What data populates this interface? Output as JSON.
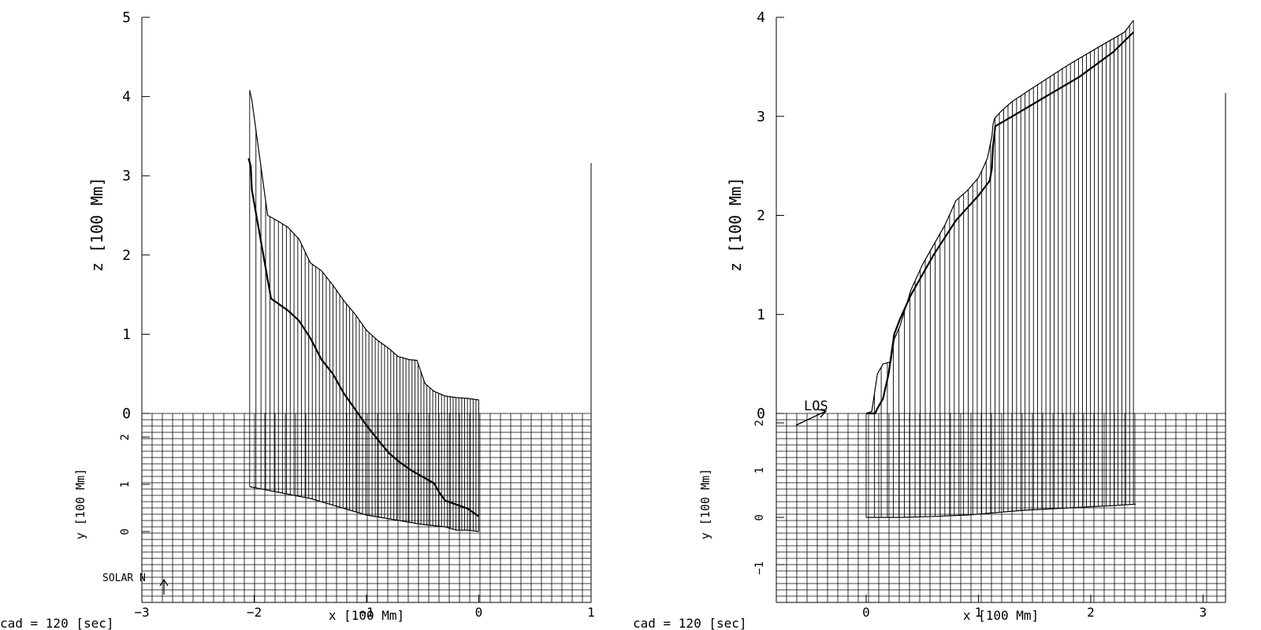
{
  "colors": {
    "ink": "#000000",
    "background": "#ffffff"
  },
  "chart_data": [
    {
      "type": "line",
      "panel": "left",
      "xlabel": "x [100 Mm]",
      "zlabel": "z [100 Mm]",
      "ylabel": "y [100 Mm]",
      "caption": "cad =  120 [sec]",
      "annotation": "SOLAR N",
      "x_ticks": [
        "−3",
        "−2",
        "−1",
        "0",
        "1"
      ],
      "z_ticks": [
        "0",
        "1",
        "2",
        "3",
        "4",
        "5"
      ],
      "y_ticks": [
        "0",
        "1",
        "2"
      ],
      "xlim": [
        -3,
        1
      ],
      "zlim": [
        0,
        5
      ],
      "ylim": [
        -1.5,
        2.5
      ],
      "grid": true,
      "top_profile": {
        "x": [
          -2.04,
          -2.02,
          -1.88,
          -1.78,
          -1.7,
          -1.6,
          -1.5,
          -1.4,
          -1.3,
          -1.2,
          -1.1,
          -1.0,
          -0.9,
          -0.8,
          -0.72,
          -0.62,
          -0.55,
          -0.48,
          -0.4,
          -0.3,
          -0.2,
          -0.1,
          0.0
        ],
        "z": [
          4.08,
          3.95,
          2.5,
          2.42,
          2.35,
          2.2,
          1.9,
          1.8,
          1.62,
          1.42,
          1.25,
          1.05,
          0.92,
          0.82,
          0.72,
          0.68,
          0.67,
          0.38,
          0.28,
          0.22,
          0.2,
          0.19,
          0.17
        ]
      },
      "middle_profile": {
        "x": [
          -2.05,
          -2.03,
          -2.02,
          -1.85,
          -1.7,
          -1.6,
          -1.5,
          -1.4,
          -1.3,
          -1.2,
          -1.1,
          -1.0,
          -0.9,
          -0.8,
          -0.7,
          -0.6,
          -0.5,
          -0.4,
          -0.35,
          -0.3,
          -0.2,
          -0.1,
          0.0
        ],
        "z": [
          3.22,
          3.12,
          2.82,
          1.45,
          1.3,
          1.17,
          0.95,
          0.68,
          0.5,
          0.25,
          0.05,
          -0.15,
          -0.33,
          -0.5,
          -0.62,
          -0.72,
          -0.8,
          -0.88,
          -1.0,
          -1.1,
          -1.15,
          -1.2,
          -1.3
        ]
      },
      "footprint": {
        "x": [
          -2.04,
          -1.5,
          -1.0,
          -0.5,
          -0.3,
          -0.2,
          -0.1,
          0.0
        ],
        "y": [
          0.95,
          0.7,
          0.35,
          0.15,
          0.1,
          0.03,
          0.03,
          0.0
        ]
      }
    },
    {
      "type": "line",
      "panel": "right",
      "xlabel": "x [100 Mm]",
      "zlabel": "z [100 Mm]",
      "ylabel": "y [100 Mm]",
      "caption": "cad =  120 [sec]",
      "annotation": "LOS",
      "x_ticks": [
        "0",
        "1",
        "2",
        "3"
      ],
      "z_ticks": [
        "0",
        "1",
        "2",
        "3",
        "4"
      ],
      "y_ticks": [
        "−1",
        "0",
        "1",
        "2"
      ],
      "xlim": [
        -0.8,
        3.2
      ],
      "zlim": [
        0,
        4
      ],
      "ylim": [
        -1.8,
        2.2
      ],
      "grid": true,
      "top_profile": {
        "x": [
          0.0,
          0.05,
          0.1,
          0.15,
          0.22,
          0.25,
          0.3,
          0.4,
          0.5,
          0.6,
          0.7,
          0.8,
          0.9,
          1.0,
          1.05,
          1.08,
          1.12,
          1.13,
          1.14,
          1.16,
          1.2,
          1.3,
          1.5,
          1.8,
          2.1,
          2.3,
          2.38
        ],
        "z": [
          0.0,
          0.02,
          0.4,
          0.5,
          0.52,
          0.75,
          0.88,
          1.25,
          1.5,
          1.7,
          1.9,
          2.15,
          2.25,
          2.38,
          2.5,
          2.58,
          2.8,
          2.92,
          2.97,
          3.0,
          3.05,
          3.15,
          3.3,
          3.52,
          3.72,
          3.85,
          3.97
        ]
      },
      "middle_profile": {
        "x": [
          0.0,
          0.08,
          0.1,
          0.15,
          0.2,
          0.25,
          0.3,
          0.4,
          0.6,
          0.8,
          1.0,
          1.1,
          1.12,
          1.13,
          1.15,
          1.3,
          1.6,
          1.9,
          2.2,
          2.38
        ],
        "z": [
          0.0,
          0.0,
          0.05,
          0.15,
          0.4,
          0.8,
          0.95,
          1.2,
          1.6,
          1.95,
          2.2,
          2.35,
          2.48,
          2.7,
          2.9,
          3.0,
          3.2,
          3.4,
          3.65,
          3.85
        ]
      },
      "footprint": {
        "x": [
          0.0,
          0.1,
          0.3,
          0.6,
          0.9,
          1.15,
          1.4,
          1.8,
          2.2,
          2.4
        ],
        "y": [
          0.0,
          0.0,
          0.0,
          0.02,
          0.05,
          0.1,
          0.15,
          0.2,
          0.25,
          0.28
        ]
      }
    }
  ]
}
